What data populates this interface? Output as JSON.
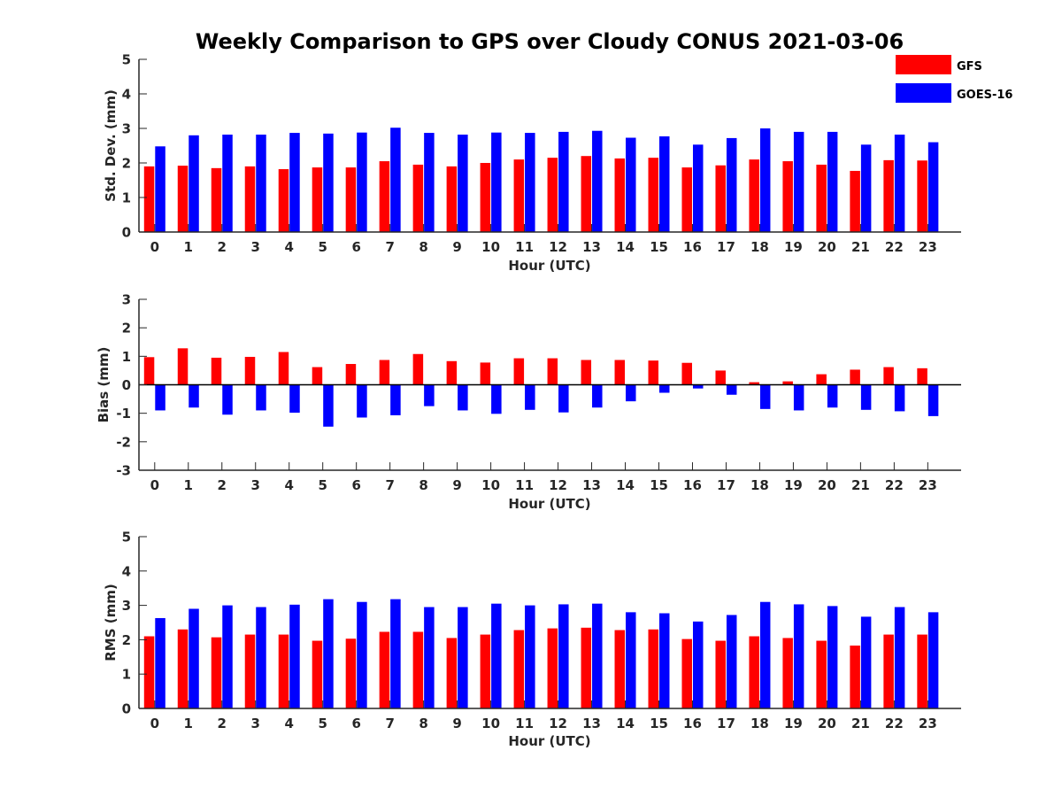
{
  "title": "Weekly Comparison to GPS over Cloudy CONUS 2021-03-06",
  "legend": {
    "placement": "top-right",
    "entries": [
      {
        "name": "GFS",
        "color": "#ff0000"
      },
      {
        "name": "GOES-16",
        "color": "#0000ff"
      }
    ]
  },
  "chart_data": [
    {
      "type": "bar",
      "xlabel": "Hour (UTC)",
      "ylabel": "Std. Dev. (mm)",
      "ylim": [
        0,
        5
      ],
      "yticks": [
        0,
        1,
        2,
        3,
        4,
        5
      ],
      "categories": [
        "0",
        "1",
        "2",
        "3",
        "4",
        "5",
        "6",
        "7",
        "8",
        "9",
        "10",
        "11",
        "12",
        "13",
        "14",
        "15",
        "16",
        "17",
        "18",
        "19",
        "20",
        "21",
        "22",
        "23"
      ],
      "series": [
        {
          "name": "GFS",
          "color": "#ff0000",
          "values": [
            1.9,
            1.92,
            1.85,
            1.9,
            1.82,
            1.87,
            1.87,
            2.05,
            1.95,
            1.9,
            2.0,
            2.1,
            2.15,
            2.2,
            2.13,
            2.15,
            1.87,
            1.93,
            2.1,
            2.05,
            1.95,
            1.77,
            2.08,
            2.07
          ]
        },
        {
          "name": "GOES-16",
          "color": "#0000ff",
          "values": [
            2.48,
            2.8,
            2.82,
            2.82,
            2.87,
            2.85,
            2.88,
            3.02,
            2.87,
            2.82,
            2.88,
            2.87,
            2.9,
            2.93,
            2.73,
            2.77,
            2.53,
            2.72,
            3.0,
            2.9,
            2.9,
            2.53,
            2.82,
            2.6
          ]
        }
      ]
    },
    {
      "type": "bar",
      "xlabel": "Hour (UTC)",
      "ylabel": "Bias (mm)",
      "ylim": [
        -3,
        3
      ],
      "yticks": [
        -3,
        -2,
        -1,
        0,
        1,
        2,
        3
      ],
      "categories": [
        "0",
        "1",
        "2",
        "3",
        "4",
        "5",
        "6",
        "7",
        "8",
        "9",
        "10",
        "11",
        "12",
        "13",
        "14",
        "15",
        "16",
        "17",
        "18",
        "19",
        "20",
        "21",
        "22",
        "23"
      ],
      "series": [
        {
          "name": "GFS",
          "color": "#ff0000",
          "values": [
            0.97,
            1.28,
            0.95,
            0.98,
            1.15,
            0.62,
            0.73,
            0.87,
            1.08,
            0.83,
            0.78,
            0.93,
            0.93,
            0.87,
            0.87,
            0.85,
            0.77,
            0.5,
            0.09,
            0.12,
            0.37,
            0.53,
            0.62,
            0.58
          ]
        },
        {
          "name": "GOES-16",
          "color": "#0000ff",
          "values": [
            -0.9,
            -0.8,
            -1.05,
            -0.9,
            -0.98,
            -1.47,
            -1.15,
            -1.07,
            -0.75,
            -0.9,
            -1.02,
            -0.88,
            -0.97,
            -0.8,
            -0.58,
            -0.28,
            -0.13,
            -0.35,
            -0.85,
            -0.9,
            -0.8,
            -0.88,
            -0.93,
            -1.1
          ]
        }
      ]
    },
    {
      "type": "bar",
      "xlabel": "Hour (UTC)",
      "ylabel": "RMS (mm)",
      "ylim": [
        0,
        5
      ],
      "yticks": [
        0,
        1,
        2,
        3,
        4,
        5
      ],
      "categories": [
        "0",
        "1",
        "2",
        "3",
        "4",
        "5",
        "6",
        "7",
        "8",
        "9",
        "10",
        "11",
        "12",
        "13",
        "14",
        "15",
        "16",
        "17",
        "18",
        "19",
        "20",
        "21",
        "22",
        "23"
      ],
      "series": [
        {
          "name": "GFS",
          "color": "#ff0000",
          "values": [
            2.1,
            2.3,
            2.07,
            2.15,
            2.15,
            1.97,
            2.03,
            2.23,
            2.23,
            2.05,
            2.15,
            2.28,
            2.33,
            2.35,
            2.28,
            2.3,
            2.02,
            1.97,
            2.1,
            2.05,
            1.97,
            1.83,
            2.15,
            2.15
          ]
        },
        {
          "name": "GOES-16",
          "color": "#0000ff",
          "values": [
            2.63,
            2.9,
            3.0,
            2.95,
            3.02,
            3.18,
            3.1,
            3.18,
            2.95,
            2.95,
            3.05,
            3.0,
            3.03,
            3.05,
            2.8,
            2.77,
            2.53,
            2.72,
            3.1,
            3.03,
            2.98,
            2.67,
            2.95,
            2.8
          ]
        }
      ]
    }
  ]
}
